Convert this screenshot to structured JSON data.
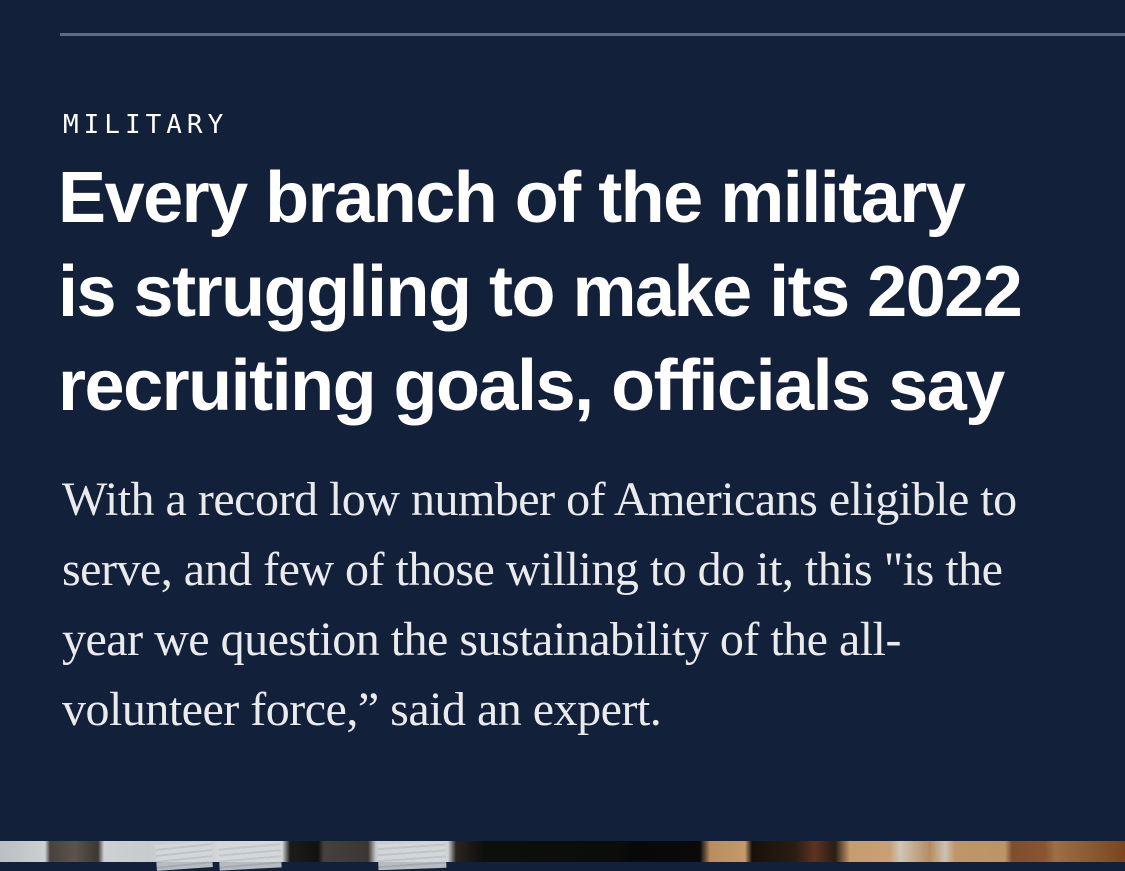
{
  "page": {
    "kicker": "MILITARY",
    "headline": "Every branch of the military\nis struggling to make its 2022\nrecruiting goals, officials say",
    "dek": "With a record low number of Americans eligible to\nserve, and few of those willing to do it, this \"is the\nyear we question the sustainability of the all-\nvolunteer force,” said an expert.",
    "hero_image": {
      "description": "Top edge of a photo: recruiting papers pinned to dark boards beside office furniture"
    },
    "colors": {
      "background": "#13203a",
      "rule": "#5e6c80",
      "kicker": "#ffffff",
      "headline": "#ffffff",
      "dek": "#e9eaec"
    }
  }
}
